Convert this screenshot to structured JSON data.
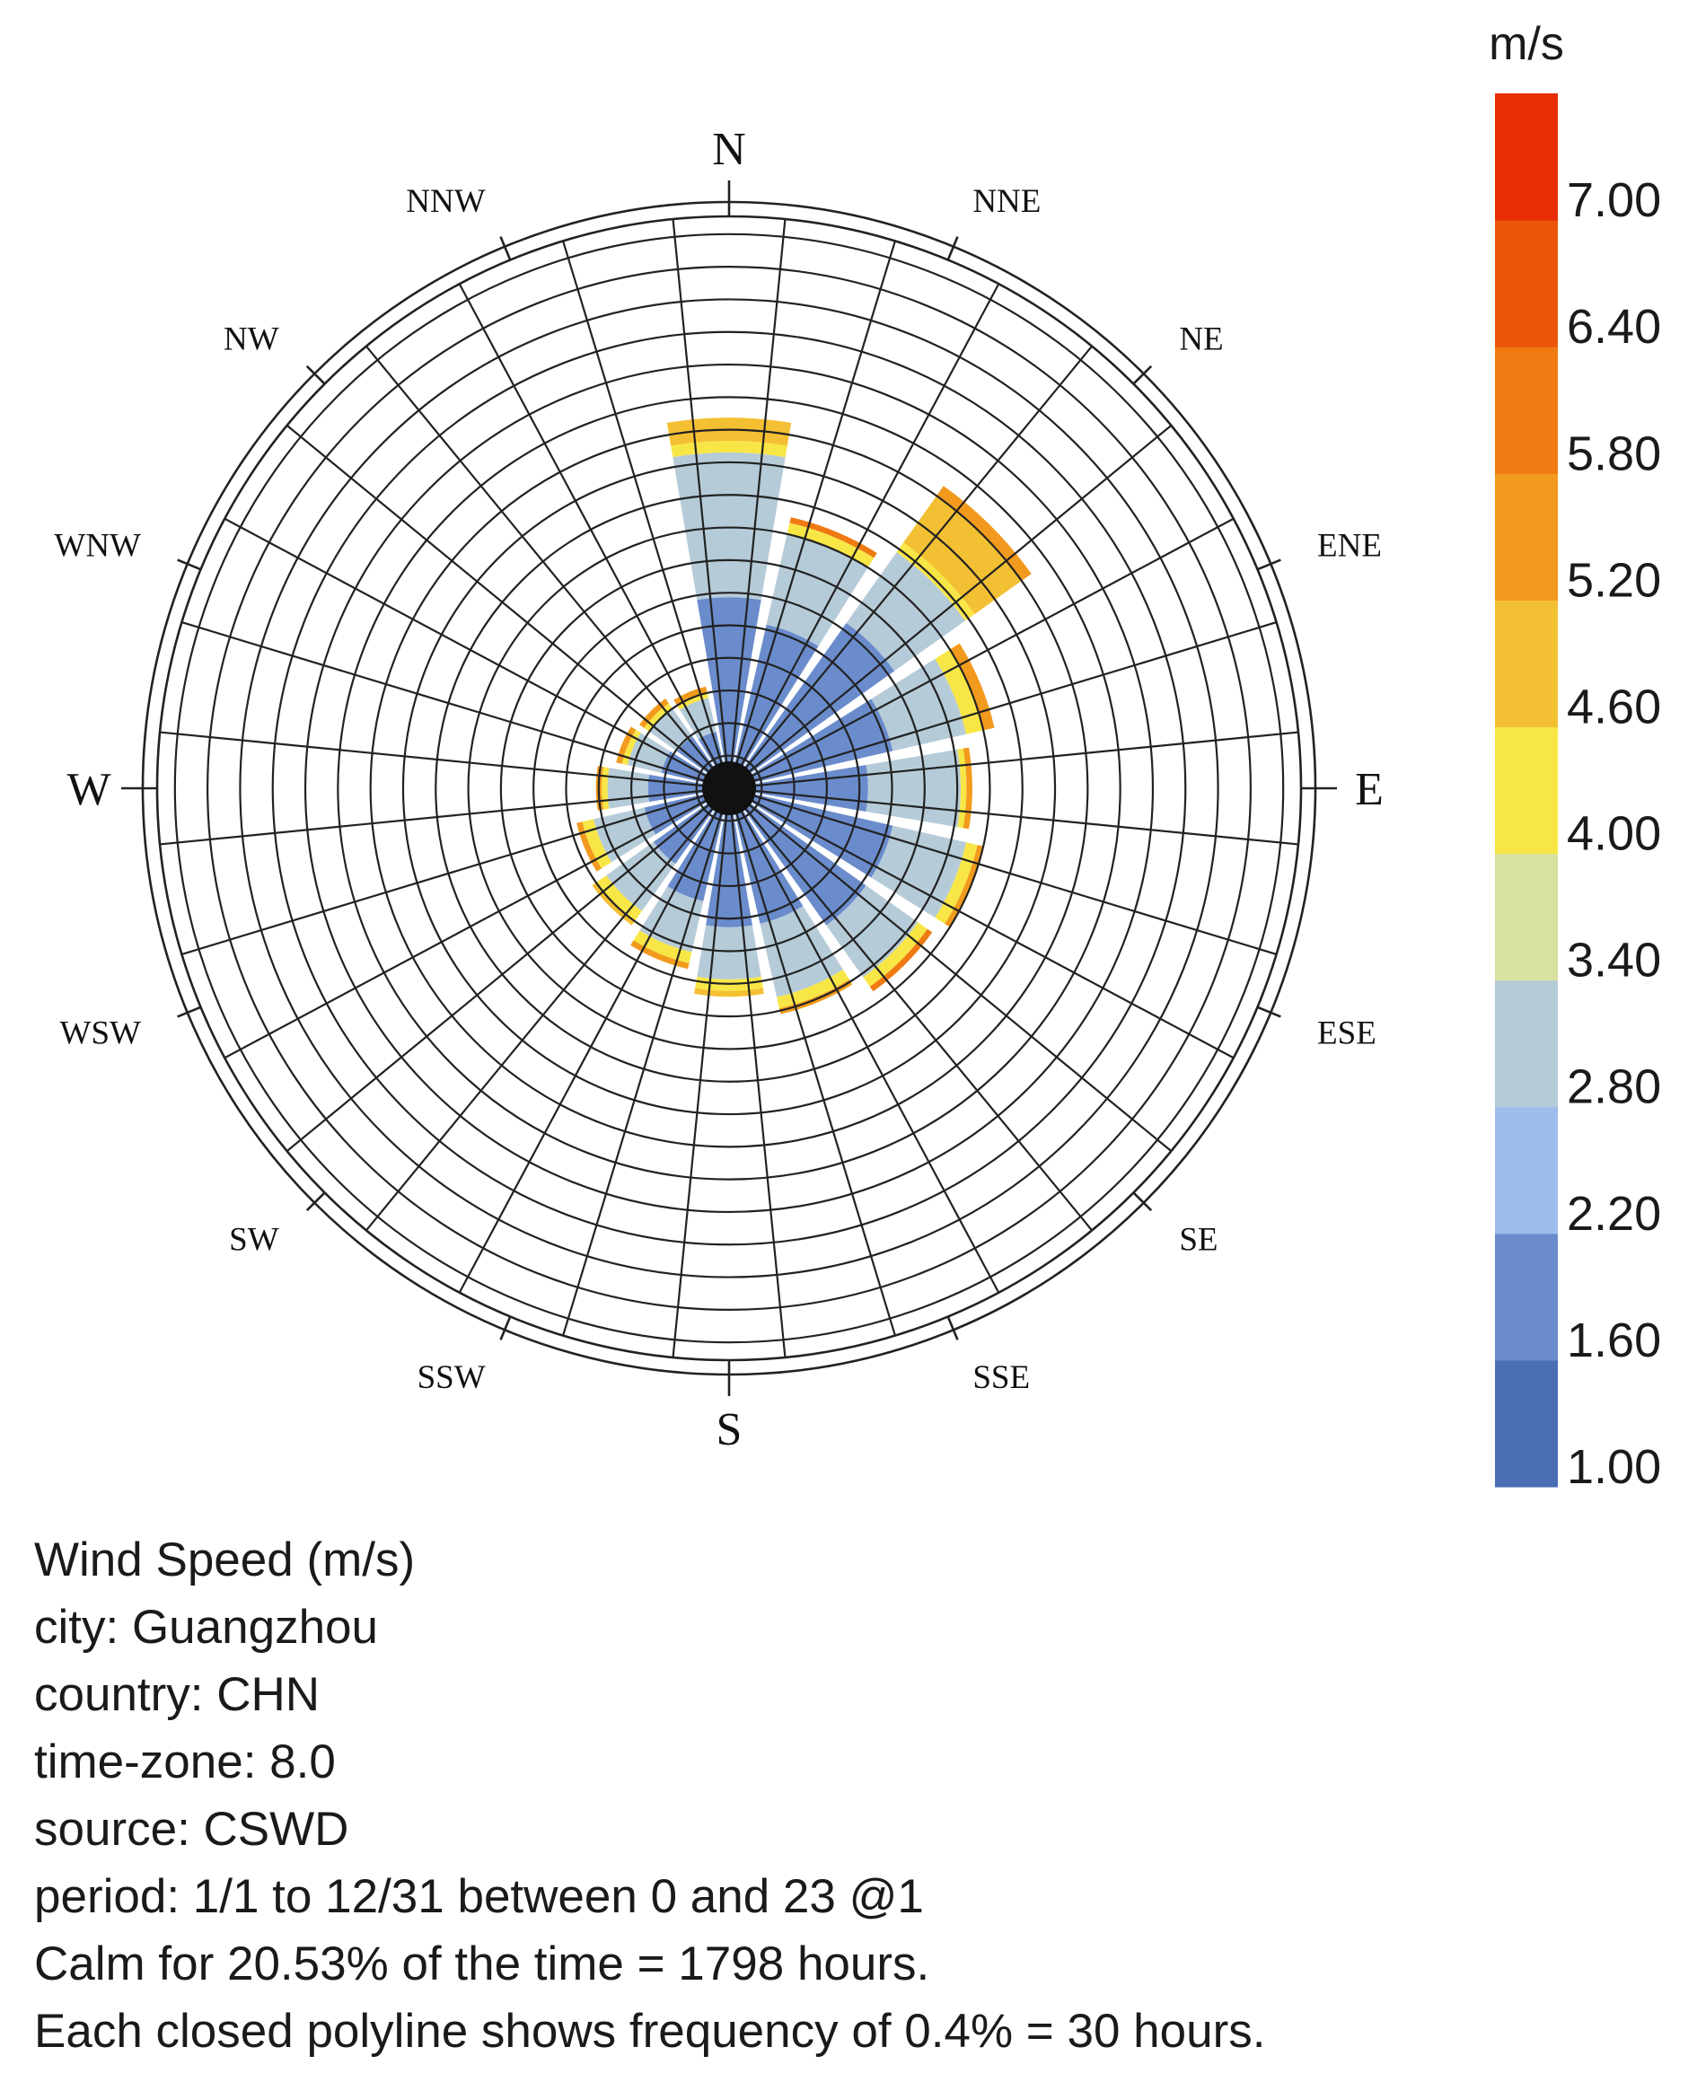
{
  "chart_data": {
    "type": "wind-rose",
    "unit_label": "m/s",
    "directions": [
      "N",
      "NNE",
      "NE",
      "ENE",
      "E",
      "ESE",
      "SE",
      "SSE",
      "S",
      "SSW",
      "SW",
      "WSW",
      "W",
      "WNW",
      "NW",
      "NNW"
    ],
    "colorbar": {
      "ticks": [
        "1.00",
        "1.60",
        "2.20",
        "2.80",
        "3.40",
        "4.00",
        "4.60",
        "5.20",
        "5.80",
        "6.40",
        "7.00"
      ],
      "colors": [
        "#4a6db4",
        "#6a8ccc",
        "#9dbdec",
        "#b6cbd8",
        "#d8e1a0",
        "#f8e646",
        "#f4c033",
        "#f19a1d",
        "#ef7a12",
        "#ec560b",
        "#e72d05"
      ]
    },
    "sectors": [
      {
        "dir": "N",
        "bands": [
          {
            "level": 1,
            "end": 0.33
          },
          {
            "level": 3,
            "end": 0.58
          },
          {
            "level": 5,
            "end": 0.6
          },
          {
            "level": 6,
            "end": 0.64
          }
        ]
      },
      {
        "dir": "NNE",
        "bands": [
          {
            "level": 1,
            "end": 0.29
          },
          {
            "level": 3,
            "end": 0.45
          },
          {
            "level": 5,
            "end": 0.47
          },
          {
            "level": 8,
            "end": 0.48
          }
        ]
      },
      {
        "dir": "NE",
        "bands": [
          {
            "level": 1,
            "end": 0.35
          },
          {
            "level": 3,
            "end": 0.5
          },
          {
            "level": 5,
            "end": 0.52
          },
          {
            "level": 6,
            "end": 0.62
          },
          {
            "level": 7,
            "end": 0.64
          }
        ]
      },
      {
        "dir": "ENE",
        "bands": [
          {
            "level": 1,
            "end": 0.29
          },
          {
            "level": 3,
            "end": 0.42
          },
          {
            "level": 5,
            "end": 0.45
          },
          {
            "level": 7,
            "end": 0.47
          }
        ]
      },
      {
        "dir": "E",
        "bands": [
          {
            "level": 1,
            "end": 0.24
          },
          {
            "level": 3,
            "end": 0.4
          },
          {
            "level": 5,
            "end": 0.41
          },
          {
            "level": 7,
            "end": 0.42
          }
        ]
      },
      {
        "dir": "ESE",
        "bands": [
          {
            "level": 1,
            "end": 0.29
          },
          {
            "level": 3,
            "end": 0.42
          },
          {
            "level": 5,
            "end": 0.44
          },
          {
            "level": 7,
            "end": 0.45
          }
        ]
      },
      {
        "dir": "SE",
        "bands": [
          {
            "level": 1,
            "end": 0.29
          },
          {
            "level": 3,
            "end": 0.4
          },
          {
            "level": 5,
            "end": 0.42
          },
          {
            "level": 8,
            "end": 0.43
          }
        ]
      },
      {
        "dir": "SSE",
        "bands": [
          {
            "level": 1,
            "end": 0.24
          },
          {
            "level": 3,
            "end": 0.37
          },
          {
            "level": 5,
            "end": 0.39
          },
          {
            "level": 7,
            "end": 0.4
          }
        ]
      },
      {
        "dir": "S",
        "bands": [
          {
            "level": 1,
            "end": 0.24
          },
          {
            "level": 3,
            "end": 0.33
          },
          {
            "level": 5,
            "end": 0.35
          },
          {
            "level": 6,
            "end": 0.36
          }
        ]
      },
      {
        "dir": "SSW",
        "bands": [
          {
            "level": 1,
            "end": 0.2
          },
          {
            "level": 3,
            "end": 0.29
          },
          {
            "level": 5,
            "end": 0.31
          },
          {
            "level": 7,
            "end": 0.32
          }
        ]
      },
      {
        "dir": "SW",
        "bands": [
          {
            "level": 1,
            "end": 0.16
          },
          {
            "level": 3,
            "end": 0.26
          },
          {
            "level": 5,
            "end": 0.28
          },
          {
            "level": 6,
            "end": 0.29
          }
        ]
      },
      {
        "dir": "WSW",
        "bands": [
          {
            "level": 1,
            "end": 0.15
          },
          {
            "level": 3,
            "end": 0.24
          },
          {
            "level": 5,
            "end": 0.26
          },
          {
            "level": 7,
            "end": 0.27
          }
        ]
      },
      {
        "dir": "W",
        "bands": [
          {
            "level": 1,
            "end": 0.14
          },
          {
            "level": 3,
            "end": 0.21
          },
          {
            "level": 5,
            "end": 0.22
          },
          {
            "level": 7,
            "end": 0.23
          }
        ]
      },
      {
        "dir": "WNW",
        "bands": [
          {
            "level": 1,
            "end": 0.12
          },
          {
            "level": 3,
            "end": 0.18
          },
          {
            "level": 5,
            "end": 0.19
          },
          {
            "level": 7,
            "end": 0.2
          }
        ]
      },
      {
        "dir": "NW",
        "bands": [
          {
            "level": 1,
            "end": 0.11
          },
          {
            "level": 3,
            "end": 0.17
          },
          {
            "level": 5,
            "end": 0.18
          },
          {
            "level": 7,
            "end": 0.19
          }
        ]
      },
      {
        "dir": "NNW",
        "bands": [
          {
            "level": 1,
            "end": 0.1
          },
          {
            "level": 3,
            "end": 0.16
          },
          {
            "level": 5,
            "end": 0.17
          },
          {
            "level": 7,
            "end": 0.18
          }
        ]
      }
    ]
  },
  "info": {
    "title": "Wind Speed (m/s)",
    "city": "city: Guangzhou",
    "country": "country: CHN",
    "timezone": "time-zone: 8.0",
    "source": "source: CSWD",
    "period": "period: 1/1 to 12/31 between 0 and 23 @1",
    "calm": "Calm for 20.53% of the time = 1798 hours.",
    "polyline": "Each closed polyline shows frequency of 0.4% = 30 hours."
  }
}
